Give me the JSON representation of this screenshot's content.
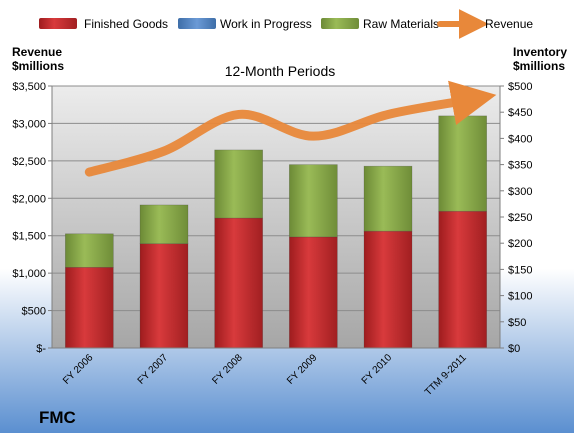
{
  "chart_data": {
    "type": "bar",
    "title": "12-Month Periods",
    "company": "FMC",
    "left_axis_label": [
      "Revenue",
      "$millions"
    ],
    "right_axis_label": [
      "Inventory",
      "$millions"
    ],
    "categories": [
      "FY 2006",
      "FY 2007",
      "FY 2008",
      "FY 2009",
      "FY 2010",
      "TTM 9-2011"
    ],
    "left_ylim": [
      0,
      3500
    ],
    "left_ticks": [
      "$-",
      "$500",
      "$1,000",
      "$1,500",
      "$2,000",
      "$2,500",
      "$3,000",
      "$3,500"
    ],
    "right_ylim": [
      0,
      500
    ],
    "right_ticks": [
      "$0",
      "$50",
      "$100",
      "$150",
      "$200",
      "$250",
      "$300",
      "$350",
      "$400",
      "$450",
      "$500"
    ],
    "legend": [
      {
        "name": "Finished Goods",
        "color": "#c0282a"
      },
      {
        "name": "Work in Progress",
        "color": "#4f81bd"
      },
      {
        "name": "Raw Materials",
        "color": "#8aa84a"
      },
      {
        "name": "Revenue",
        "color": "#e8883a"
      }
    ],
    "series": [
      {
        "name": "Finished Goods",
        "axis": "right",
        "stacked": true,
        "color": "#c0282a",
        "values": [
          154,
          199,
          248,
          212,
          223,
          261
        ]
      },
      {
        "name": "Work in Progress",
        "axis": "right",
        "stacked": true,
        "color": "#4f81bd",
        "values": [
          0,
          0,
          0,
          0,
          0,
          0
        ]
      },
      {
        "name": "Raw Materials",
        "axis": "right",
        "stacked": true,
        "color": "#8aa84a",
        "values": [
          64,
          74,
          130,
          138,
          124,
          182
        ]
      },
      {
        "name": "Revenue",
        "axis": "left",
        "type": "line",
        "color": "#e8883a",
        "values": [
          2350,
          2630,
          3120,
          2830,
          3120,
          3300
        ]
      }
    ],
    "grid": true,
    "legend_position": "top"
  }
}
